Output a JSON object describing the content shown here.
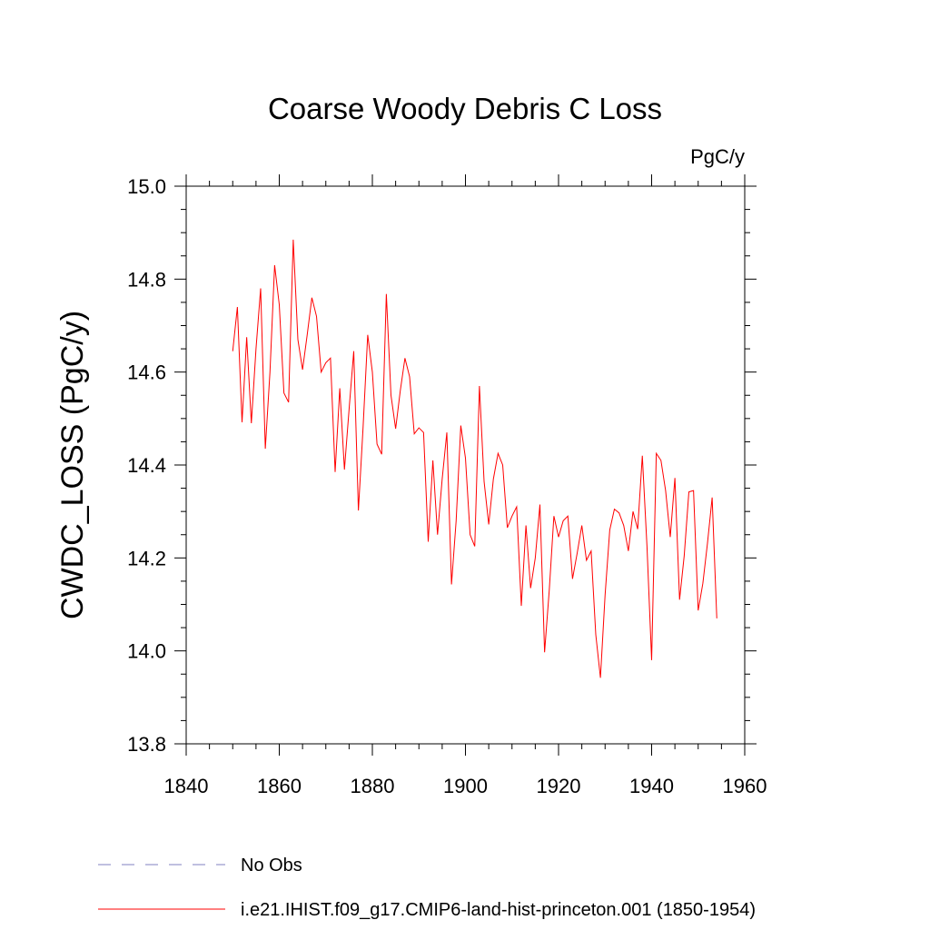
{
  "chart_data": {
    "type": "line",
    "title": "Coarse Woody Debris C Loss",
    "units": "PgC/y",
    "ylabel": "CWDC_LOSS  (PgC/y)",
    "xlabel": "",
    "xlim": [
      1840,
      1960
    ],
    "ylim": [
      13.8,
      15.0
    ],
    "x_ticks": [
      1840,
      1860,
      1880,
      1900,
      1920,
      1940,
      1960
    ],
    "x_tick_labels": [
      "1840",
      "1860",
      "1880",
      "1900",
      "1920",
      "1940",
      "1960"
    ],
    "y_ticks": [
      13.8,
      14.0,
      14.2,
      14.4,
      14.6,
      14.8,
      15.0
    ],
    "y_tick_labels": [
      "13.8",
      "14.0",
      "14.2",
      "14.4",
      "14.6",
      "14.8",
      "15.0"
    ],
    "series": [
      {
        "name": "i.e21.IHIST.f09_g17.CMIP6-land-hist-princeton.001 (1850-1954)",
        "color": "#ff0000",
        "style": "solid",
        "x": [
          1850,
          1851,
          1852,
          1853,
          1854,
          1855,
          1856,
          1857,
          1858,
          1859,
          1860,
          1861,
          1862,
          1863,
          1864,
          1865,
          1866,
          1867,
          1868,
          1869,
          1870,
          1871,
          1872,
          1873,
          1874,
          1875,
          1876,
          1877,
          1878,
          1879,
          1880,
          1881,
          1882,
          1883,
          1884,
          1885,
          1886,
          1887,
          1888,
          1889,
          1890,
          1891,
          1892,
          1893,
          1894,
          1895,
          1896,
          1897,
          1898,
          1899,
          1900,
          1901,
          1902,
          1903,
          1904,
          1905,
          1906,
          1907,
          1908,
          1909,
          1910,
          1911,
          1912,
          1913,
          1914,
          1915,
          1916,
          1917,
          1918,
          1919,
          1920,
          1921,
          1922,
          1923,
          1924,
          1925,
          1926,
          1927,
          1928,
          1929,
          1930,
          1931,
          1932,
          1933,
          1934,
          1935,
          1936,
          1937,
          1938,
          1939,
          1940,
          1941,
          1942,
          1943,
          1944,
          1945,
          1946,
          1947,
          1948,
          1949,
          1950,
          1951,
          1952,
          1953,
          1954
        ],
        "values": [
          14.645,
          14.74,
          14.492,
          14.675,
          14.49,
          14.65,
          14.78,
          14.435,
          14.6,
          14.83,
          14.745,
          14.555,
          14.535,
          14.885,
          14.67,
          14.605,
          14.68,
          14.76,
          14.72,
          14.6,
          14.62,
          14.63,
          14.385,
          14.565,
          14.39,
          14.52,
          14.645,
          14.302,
          14.48,
          14.68,
          14.6,
          14.445,
          14.423,
          14.768,
          14.55,
          14.478,
          14.56,
          14.63,
          14.59,
          14.467,
          14.48,
          14.47,
          14.235,
          14.41,
          14.25,
          14.37,
          14.47,
          14.143,
          14.28,
          14.485,
          14.415,
          14.25,
          14.225,
          14.57,
          14.365,
          14.272,
          14.37,
          14.425,
          14.4,
          14.265,
          14.29,
          14.31,
          14.097,
          14.27,
          14.135,
          14.2,
          14.315,
          13.997,
          14.13,
          14.29,
          14.245,
          14.28,
          14.29,
          14.155,
          14.21,
          14.27,
          14.195,
          14.215,
          14.035,
          13.942,
          14.12,
          14.26,
          14.305,
          14.297,
          14.27,
          14.215,
          14.3,
          14.262,
          14.42,
          14.225,
          13.98,
          14.425,
          14.41,
          14.345,
          14.245,
          14.372,
          14.11,
          14.205,
          14.342,
          14.345,
          14.087,
          14.145,
          14.232,
          14.33,
          14.07
        ]
      }
    ],
    "grid": false
  },
  "legend": {
    "items": [
      {
        "label": "No Obs",
        "color": "#8080c0",
        "style": "dashed"
      },
      {
        "label": "i.e21.IHIST.f09_g17.CMIP6-land-hist-princeton.001 (1850-1954)",
        "color": "#ff0000",
        "style": "solid"
      }
    ]
  }
}
